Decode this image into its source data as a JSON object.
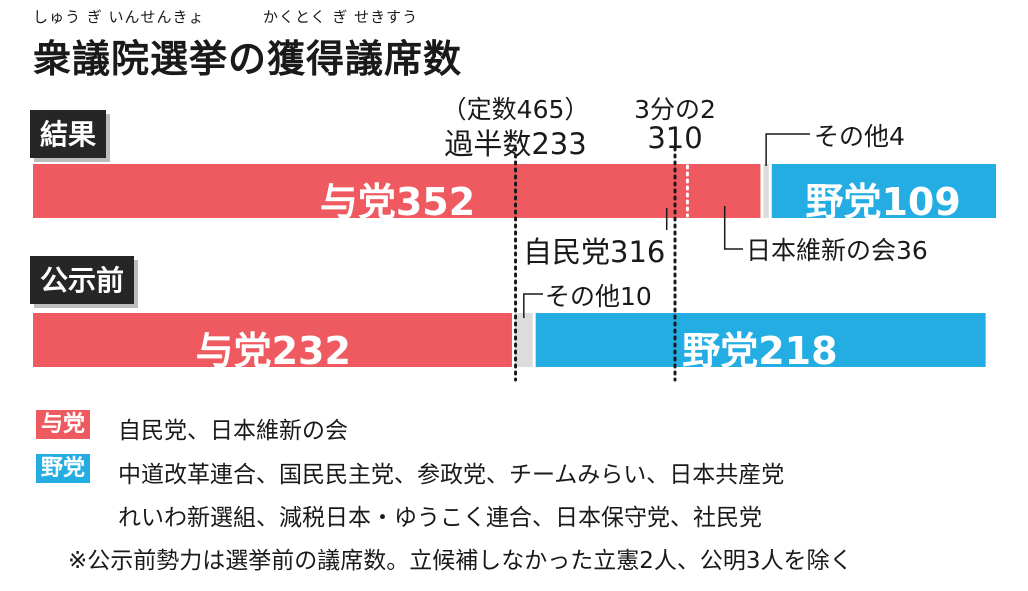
{
  "header": {
    "ruby_1": "しゅう ぎ いんせんきょ",
    "ruby_2": "かくとく ぎ せきすう",
    "title": "衆議院選挙の獲得議席数"
  },
  "colors": {
    "ruling": "#ee5a5f",
    "opposition": "#23ade3",
    "other": "#dcdcdc",
    "tag_bg": "#262626"
  },
  "chart_data": {
    "type": "bar",
    "orientation": "horizontal-stacked",
    "title": "衆議院選挙の獲得議席数",
    "total_seats": 465,
    "rows": [
      {
        "label": "結果",
        "segments": [
          {
            "name": "与党",
            "value": 352,
            "label": "与党352",
            "color": "#ee5a5f"
          },
          {
            "name": "その他",
            "value": 4,
            "label": "その他4",
            "color": "#dcdcdc"
          },
          {
            "name": "野党",
            "value": 109,
            "label": "野党109",
            "color": "#23ade3"
          }
        ],
        "breakdown": [
          {
            "name": "自民党",
            "value": 316,
            "label": "自民党316"
          },
          {
            "name": "日本維新の会",
            "value": 36,
            "label": "日本維新の会36"
          }
        ]
      },
      {
        "label": "公示前",
        "segments": [
          {
            "name": "与党",
            "value": 232,
            "label": "与党232",
            "color": "#ee5a5f"
          },
          {
            "name": "その他",
            "value": 10,
            "label": "その他10",
            "color": "#dcdcdc"
          },
          {
            "name": "野党",
            "value": 218,
            "label": "野党218",
            "color": "#23ade3"
          }
        ]
      }
    ],
    "reference_lines": [
      {
        "value": 233,
        "label_top": "（定数465）",
        "label": "過半数233"
      },
      {
        "value": 310,
        "label_top": "3分の2",
        "label": "310"
      }
    ]
  },
  "legend": [
    {
      "chip": "与党",
      "color": "#ee5a5f",
      "lines": [
        "自民党、日本維新の会"
      ]
    },
    {
      "chip": "野党",
      "color": "#23ade3",
      "lines": [
        "中道改革連合、国民民主党、参政党、チームみらい、日本共産党",
        "れいわ新選組、減税日本・ゆうこく連合、日本保守党、社民党"
      ]
    }
  ],
  "footnote": "※公示前勢力は選挙前の議席数。立候補しなかった立憲2人、公明3人を除く"
}
